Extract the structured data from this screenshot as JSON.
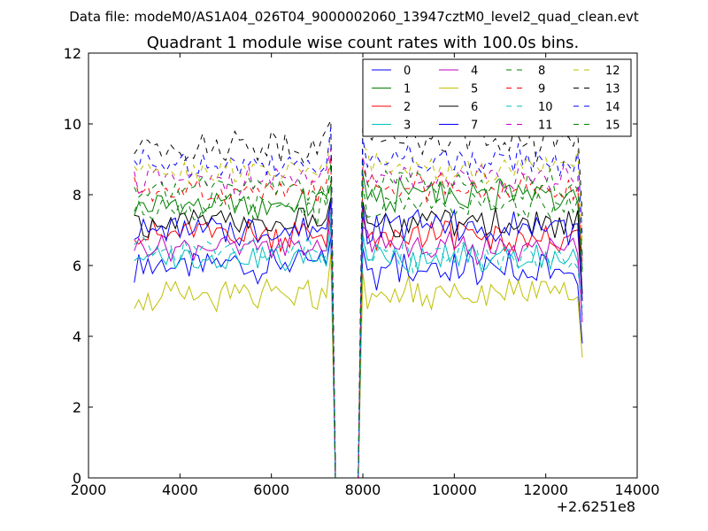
{
  "chart_data": {
    "type": "line",
    "suptitle": "Data file: modeM0/AS1A04_026T04_9000002060_13947cztM0_level2_quad_clean.evt",
    "title": "Quadrant 1 module wise count rates with 100.0s bins.",
    "xlabel": "",
    "ylabel": "",
    "x_offset_label": "+2.6251e8",
    "xlim": [
      2000,
      14000
    ],
    "ylim": [
      0,
      12
    ],
    "xticks": [
      2000,
      4000,
      6000,
      8000,
      10000,
      12000,
      14000
    ],
    "yticks": [
      0,
      2,
      4,
      6,
      8,
      10,
      12
    ],
    "grid": false,
    "legend_position": "top-right",
    "legend_columns": 4,
    "x_segments": [
      {
        "start": 3000,
        "end": 7300,
        "step": 100
      },
      {
        "start": 7400,
        "end": 7900,
        "step": 100
      },
      {
        "start": 8000,
        "end": 12800,
        "step": 100
      }
    ],
    "series": [
      {
        "name": "0",
        "color": "#0000ff",
        "dash": "solid",
        "mean1": 6.0,
        "amp1": 0.35,
        "mean2": 5.9,
        "amp2": 0.45,
        "edge_start": 5.9,
        "edge_end": 3.8
      },
      {
        "name": "1",
        "color": "#008000",
        "dash": "solid",
        "mean1": 7.7,
        "amp1": 0.35,
        "mean2": 8.0,
        "amp2": 0.4,
        "edge_start": 7.4,
        "edge_end": 5.9
      },
      {
        "name": "2",
        "color": "#ff0000",
        "dash": "solid",
        "mean1": 6.9,
        "amp1": 0.35,
        "mean2": 6.8,
        "amp2": 0.35,
        "edge_start": 7.0,
        "edge_end": 5.0
      },
      {
        "name": "3",
        "color": "#00bfbf",
        "dash": "solid",
        "mean1": 6.2,
        "amp1": 0.3,
        "mean2": 6.2,
        "amp2": 0.35,
        "edge_start": 6.3,
        "edge_end": 4.6
      },
      {
        "name": "4",
        "color": "#bf00bf",
        "dash": "solid",
        "mean1": 6.5,
        "amp1": 0.3,
        "mean2": 6.5,
        "amp2": 0.35,
        "edge_start": 6.6,
        "edge_end": 4.4
      },
      {
        "name": "5",
        "color": "#bfbf00",
        "dash": "solid",
        "mean1": 5.1,
        "amp1": 0.35,
        "mean2": 5.2,
        "amp2": 0.35,
        "edge_start": 5.4,
        "edge_end": 3.4
      },
      {
        "name": "6",
        "color": "#000000",
        "dash": "solid",
        "mean1": 7.2,
        "amp1": 0.3,
        "mean2": 7.2,
        "amp2": 0.35,
        "edge_start": 7.0,
        "edge_end": 5.2
      },
      {
        "name": "7",
        "color": "#0000ff",
        "dash": "solid",
        "mean1": 7.0,
        "amp1": 0.35,
        "mean2": 7.1,
        "amp2": 0.4,
        "edge_start": 6.9,
        "edge_end": 5.0
      },
      {
        "name": "8",
        "color": "#008000",
        "dash": "dashed",
        "mean1": 7.6,
        "amp1": 0.35,
        "mean2": 7.7,
        "amp2": 0.35,
        "edge_start": 7.5,
        "edge_end": 5.8
      },
      {
        "name": "9",
        "color": "#ff0000",
        "dash": "dashed",
        "mean1": 8.1,
        "amp1": 0.3,
        "mean2": 8.2,
        "amp2": 0.35,
        "edge_start": 8.2,
        "edge_end": 6.0
      },
      {
        "name": "10",
        "color": "#00bfbf",
        "dash": "dashed",
        "mean1": 6.4,
        "amp1": 0.3,
        "mean2": 6.3,
        "amp2": 0.35,
        "edge_start": 6.6,
        "edge_end": 4.8
      },
      {
        "name": "11",
        "color": "#bf00bf",
        "dash": "dashed",
        "mean1": 8.4,
        "amp1": 0.3,
        "mean2": 8.5,
        "amp2": 0.35,
        "edge_start": 8.4,
        "edge_end": 6.2
      },
      {
        "name": "12",
        "color": "#bfbf00",
        "dash": "dashed",
        "mean1": 8.7,
        "amp1": 0.3,
        "mean2": 8.8,
        "amp2": 0.35,
        "edge_start": 8.8,
        "edge_end": 6.6
      },
      {
        "name": "13",
        "color": "#000000",
        "dash": "dashed",
        "mean1": 9.4,
        "amp1": 0.35,
        "mean2": 9.5,
        "amp2": 0.4,
        "edge_start": 9.2,
        "edge_end": 7.4
      },
      {
        "name": "14",
        "color": "#0000ff",
        "dash": "dashed",
        "mean1": 8.9,
        "amp1": 0.3,
        "mean2": 9.0,
        "amp2": 0.35,
        "edge_start": 9.0,
        "edge_end": 6.8
      },
      {
        "name": "15",
        "color": "#008000",
        "dash": "dashed",
        "mean1": 8.2,
        "amp1": 0.3,
        "mean2": 8.3,
        "amp2": 0.35,
        "edge_start": 8.0,
        "edge_end": 6.3
      }
    ]
  }
}
